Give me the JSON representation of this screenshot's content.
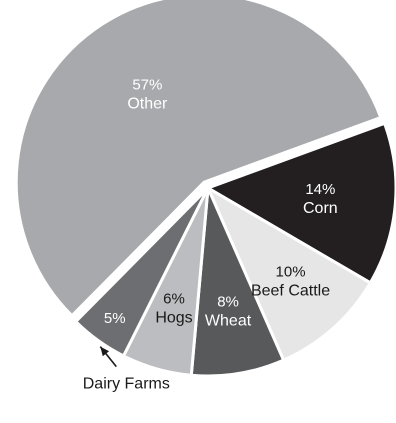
{
  "chart_data": {
    "type": "pie",
    "slices": [
      {
        "label": "Corn",
        "percent_label": "14%",
        "value": 14,
        "color": "#231f20",
        "text_color": "#ffffff"
      },
      {
        "label": "Beef Cattle",
        "percent_label": "10%",
        "value": 10,
        "color": "#e6e6e6",
        "text_color": "#1a1a1a"
      },
      {
        "label": "Wheat",
        "percent_label": "8%",
        "value": 8,
        "color": "#58595b",
        "text_color": "#ffffff"
      },
      {
        "label": "Hogs",
        "percent_label": "6%",
        "value": 6,
        "color": "#bcbdc0",
        "text_color": "#1a1a1a"
      },
      {
        "label": "Dairy Farms",
        "percent_label": "5%",
        "value": 5,
        "color": "#6d6e71",
        "text_color": "#ffffff",
        "label_outside": true
      },
      {
        "label": "Other",
        "percent_label": "57%",
        "value": 57,
        "color": "#a7a9ac",
        "text_color": "#ffffff"
      }
    ]
  }
}
